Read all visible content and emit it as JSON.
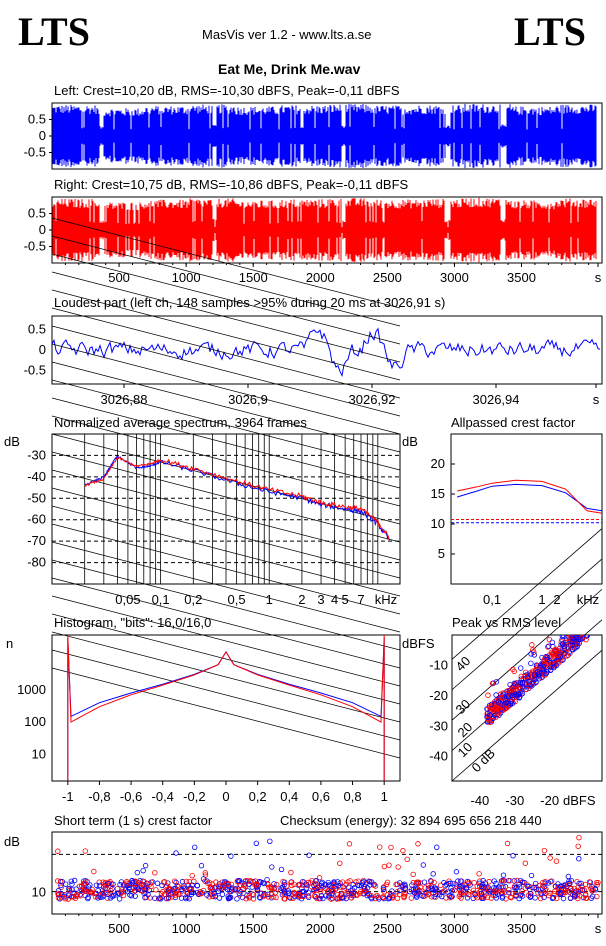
{
  "header": {
    "logo_left": "LTS",
    "logo_right": "LTS",
    "app_title": "MasVis ver 1.2 - www.lts.a.se",
    "file_title": "Eat Me, Drink Me.wav"
  },
  "colors": {
    "left": "#0000ff",
    "right": "#ff0000",
    "axis": "#000000"
  },
  "chart_data": [
    {
      "id": "left-waveform",
      "type": "area",
      "title": "Left: Crest=10,20 dB, RMS=-10,30 dBFS, Peak=-0,11 dBFS",
      "yticks": [
        "0.5",
        "0",
        "-0.5"
      ],
      "ylim": [
        -1,
        1
      ],
      "xlim": [
        0,
        4100
      ],
      "envelope_amplitude": [
        0.95,
        0.85,
        0.92,
        0.96,
        0.9,
        0.94,
        0.97,
        0.93,
        0.95,
        0.98,
        0.9,
        0.96
      ]
    },
    {
      "id": "right-waveform",
      "type": "area",
      "title": "Right: Crest=10,75 dB, RMS=-10,86 dBFS, Peak=-0,11 dBFS",
      "yticks": [
        "0.5",
        "0",
        "-0.5"
      ],
      "xticks": [
        "500",
        "1000",
        "1500",
        "2000",
        "2500",
        "3000",
        "3500",
        "s"
      ],
      "ylim": [
        -1,
        1
      ],
      "xlim": [
        0,
        4100
      ]
    },
    {
      "id": "loudest-part",
      "type": "line",
      "title": "Loudest part (left  ch, 148 samples >95% during 20 ms at 3026,91 s)",
      "yticks": [
        "0.5",
        "0",
        "-0.5"
      ],
      "xticks": [
        "3026,88",
        "3026,9",
        "3026,92",
        "3026,94",
        "s"
      ],
      "ylim": [
        -1,
        1
      ],
      "xlim": [
        3026.87,
        3026.95
      ]
    },
    {
      "id": "spectrum",
      "type": "line",
      "title": "Normalized average spectrum, 3964 frames",
      "ylabel": "dB",
      "yticks": [
        "-30",
        "-40",
        "-50",
        "-60",
        "-70",
        "-80"
      ],
      "xticks": [
        "0,05",
        "0,1",
        "0,2",
        "0,5",
        "1",
        "2",
        "3",
        "4",
        "5",
        "7",
        "kHz"
      ],
      "ylim": [
        -90,
        -20
      ],
      "series": [
        {
          "x": [
            0.02,
            0.03,
            0.04,
            0.06,
            0.08,
            0.1,
            0.2,
            0.5,
            1,
            2,
            3,
            5,
            7,
            10,
            13
          ],
          "y": [
            -44,
            -40,
            -30,
            -36,
            -35,
            -33,
            -37,
            -43,
            -47,
            -50,
            -53,
            -55,
            -56,
            -62,
            -70
          ]
        },
        {
          "x": [
            0.02,
            0.03,
            0.04,
            0.06,
            0.08,
            0.1,
            0.2,
            0.5,
            1,
            2,
            3,
            5,
            7,
            10,
            13
          ],
          "y": [
            -44,
            -41,
            -31,
            -35,
            -34,
            -32,
            -36,
            -42,
            -46,
            -49,
            -52,
            -54,
            -55,
            -61,
            -69
          ]
        }
      ]
    },
    {
      "id": "allpassed-crest",
      "type": "line",
      "title": "Allpassed crest factor",
      "ylabel": "dB",
      "yticks": [
        "20",
        "15",
        "10",
        "5"
      ],
      "xticks": [
        "0,1",
        "1",
        "2",
        "kHz"
      ],
      "ylim": [
        0,
        25
      ],
      "series": [
        {
          "x": [
            0.02,
            0.05,
            0.1,
            0.3,
            1,
            3,
            8,
            16
          ],
          "y": [
            14.5,
            15.5,
            16.3,
            16.6,
            16.4,
            15.2,
            12.6,
            12.2
          ]
        },
        {
          "x": [
            0.02,
            0.05,
            0.1,
            0.3,
            1,
            3,
            8,
            16
          ],
          "y": [
            15.5,
            16.2,
            16.8,
            17.3,
            17.1,
            15.8,
            12.2,
            11.8
          ]
        }
      ],
      "reference_lines": [
        10.2,
        10.75
      ]
    },
    {
      "id": "histogram",
      "type": "line",
      "title": "Histogram, \"bits\": 16,0/16,0",
      "ylabel": "n",
      "yticks": [
        "1000",
        "100",
        "10"
      ],
      "xticks": [
        "-1",
        "-0,8",
        "-0,6",
        "-0,4",
        "-0,2",
        "0",
        "0,2",
        "0,4",
        "0,6",
        "0,8",
        "1"
      ],
      "xlim": [
        -1.1,
        1.1
      ],
      "series": [
        {
          "x": [
            -1,
            -0.98,
            -0.8,
            -0.6,
            -0.4,
            -0.2,
            -0.05,
            0,
            0.05,
            0.2,
            0.4,
            0.6,
            0.8,
            0.98,
            1
          ],
          "y": [
            40000,
            150,
            400,
            800,
            1500,
            3000,
            6000,
            15000,
            6000,
            3000,
            1500,
            800,
            400,
            150,
            40000
          ]
        },
        {
          "x": [
            -1,
            -0.98,
            -0.8,
            -0.6,
            -0.4,
            -0.2,
            -0.05,
            0,
            0.05,
            0.2,
            0.4,
            0.6,
            0.8,
            0.98,
            1
          ],
          "y": [
            50000,
            100,
            300,
            700,
            1400,
            2900,
            6000,
            15000,
            6000,
            2900,
            1400,
            700,
            300,
            100,
            50000
          ]
        }
      ]
    },
    {
      "id": "peak-vs-rms",
      "type": "scatter",
      "title": "Peak vs RMS level",
      "ylabel": "dBFS",
      "xlabel": "dBFS",
      "yticks": [
        "-10",
        "-20",
        "-30",
        "-40"
      ],
      "xticks": [
        "-40",
        "-30",
        "-20"
      ],
      "diagonal_labels": [
        "40",
        "30",
        "20",
        "10",
        "0 dB"
      ],
      "xlim": [
        -48,
        -5
      ],
      "ylim": [
        -48,
        0
      ]
    },
    {
      "id": "short-term-crest",
      "type": "scatter",
      "title": "Short term (1 s) crest factor",
      "checksum_label": "Checksum (energy):  32 894 695 656 218 440",
      "ylabel": "dB",
      "yticks": [
        "10"
      ],
      "xticks": [
        "500",
        "1000",
        "1500",
        "2000",
        "2500",
        "3000",
        "3500",
        "s"
      ],
      "xlim": [
        0,
        4100
      ],
      "ylim": [
        4,
        26
      ]
    }
  ]
}
